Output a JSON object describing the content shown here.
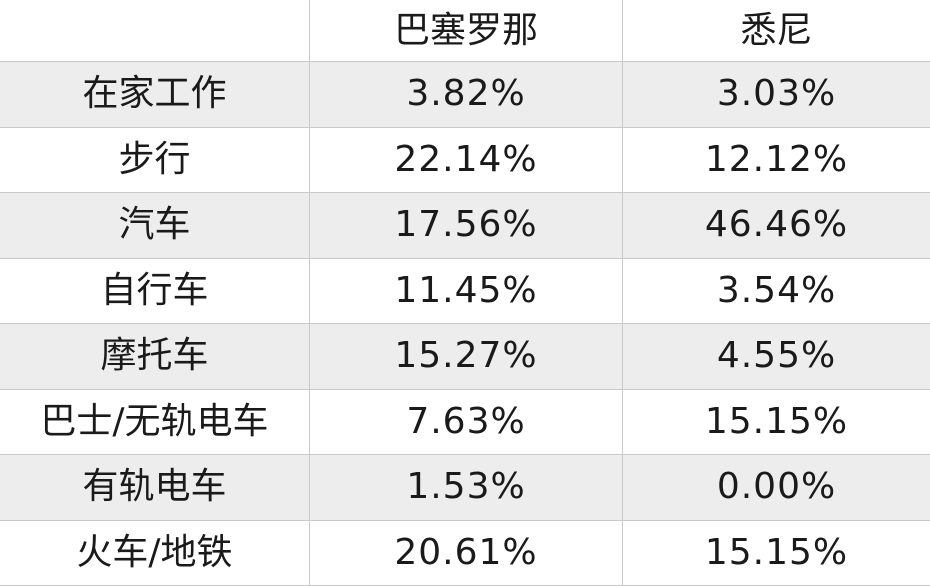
{
  "chart_data": {
    "type": "table",
    "columns": [
      "",
      "巴塞罗那",
      "悉尼"
    ],
    "rows": [
      {
        "label": "在家工作",
        "values": [
          "3.82%",
          "3.03%"
        ]
      },
      {
        "label": "步行",
        "values": [
          "22.14%",
          "12.12%"
        ]
      },
      {
        "label": "汽车",
        "values": [
          "17.56%",
          "46.46%"
        ]
      },
      {
        "label": "自行车",
        "values": [
          "11.45%",
          "3.54%"
        ]
      },
      {
        "label": "摩托车",
        "values": [
          "15.27%",
          "4.55%"
        ]
      },
      {
        "label": "巴士/无轨电车",
        "values": [
          "7.63%",
          "15.15%"
        ]
      },
      {
        "label": "有轨电车",
        "values": [
          "1.53%",
          "0.00%"
        ]
      },
      {
        "label": "火车/地铁",
        "values": [
          "20.61%",
          "15.15%"
        ]
      }
    ]
  },
  "colors": {
    "shaded_row": "#ededed",
    "border": "#c9c9c9",
    "text": "#1a1a1a"
  }
}
